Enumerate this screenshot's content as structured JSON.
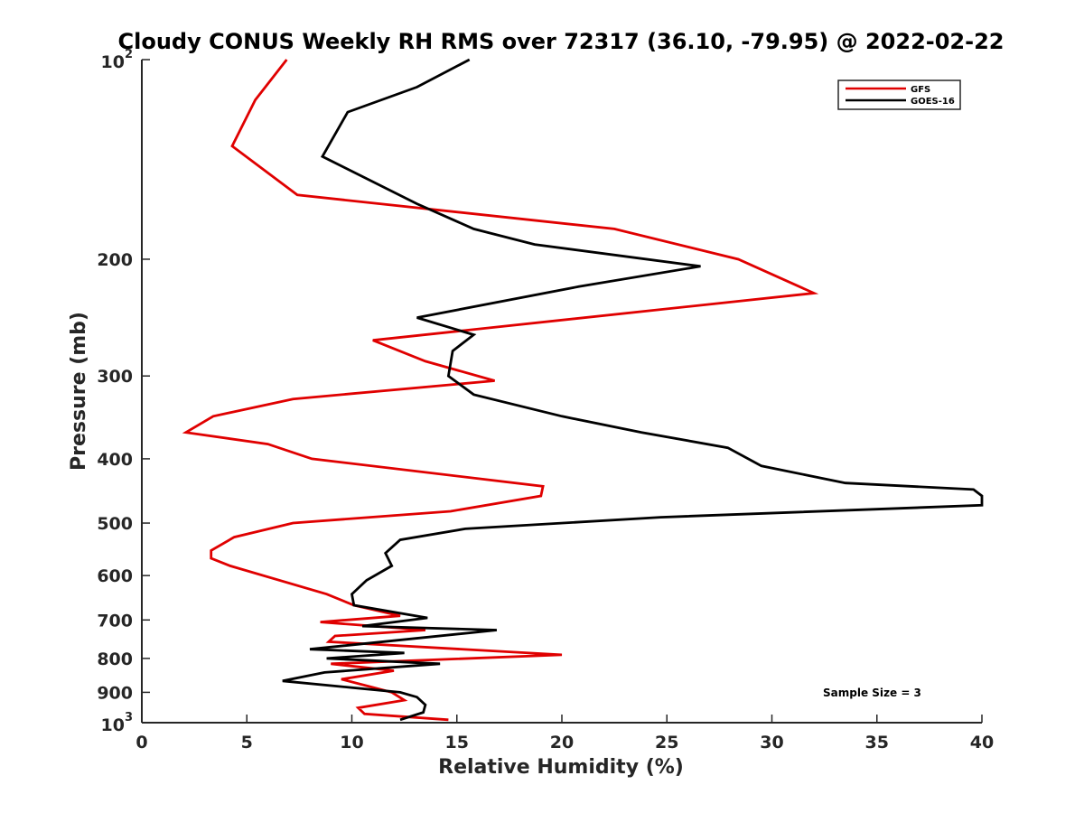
{
  "chart_data": {
    "type": "line",
    "title": "Cloudy CONUS Weekly RH RMS over 72317 (36.10, -79.95) @ 2022-02-22",
    "xlabel": "Relative Humidity (%)",
    "ylabel": "Pressure (mb)",
    "xlim": [
      0,
      40
    ],
    "ylim": [
      100,
      1000
    ],
    "yscale": "log",
    "y_reversed": true,
    "grid": false,
    "legend_position": "top-right",
    "x_ticks": [
      "0",
      "5",
      "10",
      "15",
      "20",
      "25",
      "30",
      "35",
      "40"
    ],
    "y_ticks": [
      {
        "value": 100,
        "base": "10",
        "exp": "2"
      },
      {
        "value": 200,
        "label": "200"
      },
      {
        "value": 300,
        "label": "300"
      },
      {
        "value": 400,
        "label": "400"
      },
      {
        "value": 500,
        "label": "500"
      },
      {
        "value": 600,
        "label": "600"
      },
      {
        "value": 700,
        "label": "700"
      },
      {
        "value": 800,
        "label": "800"
      },
      {
        "value": 900,
        "label": "900"
      },
      {
        "value": 1000,
        "base": "10",
        "exp": "3"
      }
    ],
    "series": [
      {
        "name": "GFS",
        "color": "#e00000",
        "points": [
          [
            6.9,
            100
          ],
          [
            5.4,
            115
          ],
          [
            4.3,
            135
          ],
          [
            7.4,
            160
          ],
          [
            22.5,
            180
          ],
          [
            28.4,
            200
          ],
          [
            32.0,
            225
          ],
          [
            11.0,
            265
          ],
          [
            13.5,
            285
          ],
          [
            16.8,
            305
          ],
          [
            7.2,
            325
          ],
          [
            3.4,
            345
          ],
          [
            2.1,
            365
          ],
          [
            6.0,
            380
          ],
          [
            8.1,
            400
          ],
          [
            19.1,
            440
          ],
          [
            19.0,
            455
          ],
          [
            14.7,
            480
          ],
          [
            7.2,
            500
          ],
          [
            4.4,
            525
          ],
          [
            3.3,
            550
          ],
          [
            3.3,
            565
          ],
          [
            4.2,
            580
          ],
          [
            8.8,
            640
          ],
          [
            10.1,
            665
          ],
          [
            12.3,
            690
          ],
          [
            8.5,
            705
          ],
          [
            13.5,
            725
          ],
          [
            9.2,
            740
          ],
          [
            8.9,
            755
          ],
          [
            20.0,
            790
          ],
          [
            9.0,
            815
          ],
          [
            12.0,
            835
          ],
          [
            9.5,
            860
          ],
          [
            11.9,
            900
          ],
          [
            12.5,
            925
          ],
          [
            10.3,
            950
          ],
          [
            10.6,
            970
          ],
          [
            14.6,
            990
          ]
        ]
      },
      {
        "name": "GOES-16",
        "color": "#000000",
        "points": [
          [
            15.6,
            100
          ],
          [
            13.1,
            110
          ],
          [
            9.8,
            120
          ],
          [
            8.6,
            140
          ],
          [
            13.1,
            165
          ],
          [
            15.8,
            180
          ],
          [
            18.7,
            190
          ],
          [
            26.6,
            205
          ],
          [
            20.8,
            220
          ],
          [
            13.1,
            245
          ],
          [
            15.8,
            260
          ],
          [
            14.8,
            275
          ],
          [
            14.6,
            300
          ],
          [
            15.8,
            320
          ],
          [
            20.0,
            345
          ],
          [
            23.8,
            365
          ],
          [
            27.9,
            385
          ],
          [
            29.5,
            410
          ],
          [
            33.5,
            435
          ],
          [
            39.6,
            445
          ],
          [
            40.0,
            455
          ],
          [
            40.0,
            470
          ],
          [
            24.7,
            490
          ],
          [
            15.4,
            510
          ],
          [
            12.3,
            530
          ],
          [
            11.6,
            555
          ],
          [
            11.9,
            580
          ],
          [
            10.7,
            610
          ],
          [
            10.0,
            640
          ],
          [
            10.1,
            665
          ],
          [
            13.6,
            695
          ],
          [
            10.5,
            715
          ],
          [
            16.9,
            725
          ],
          [
            8.0,
            775
          ],
          [
            12.5,
            785
          ],
          [
            8.8,
            800
          ],
          [
            14.2,
            815
          ],
          [
            8.7,
            840
          ],
          [
            6.7,
            865
          ],
          [
            12.3,
            900
          ],
          [
            13.1,
            915
          ],
          [
            13.5,
            940
          ],
          [
            13.4,
            965
          ],
          [
            12.3,
            990
          ]
        ]
      }
    ],
    "annotation": "Sample Size = 3"
  }
}
